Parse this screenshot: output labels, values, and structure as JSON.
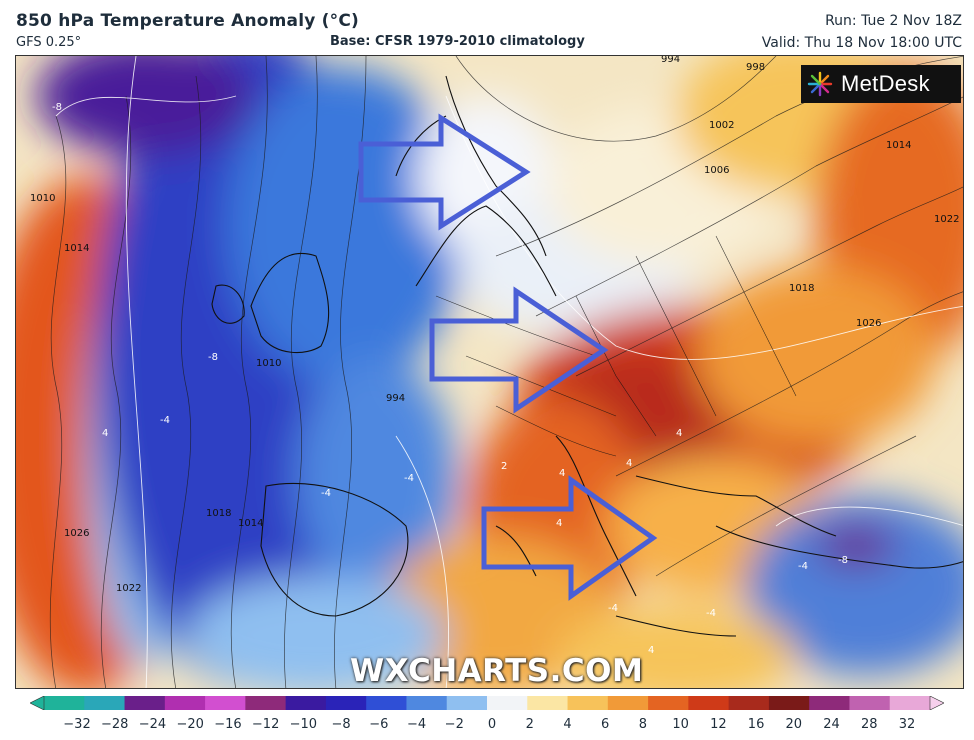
{
  "header": {
    "title": "850 hPa Temperature Anomaly (°C)",
    "model": "GFS 0.25°",
    "base": "Base: CFSR 1979-2010 climatology",
    "run": "Run: Tue 2 Nov 18Z",
    "valid": "Valid: Thu 18 Nov 18:00 UTC"
  },
  "logo": {
    "text": "MetDesk",
    "icon": "metdesk-burst-icon"
  },
  "watermark": "WXCHARTS.COM",
  "contour_labels": [
    {
      "t": "994"
    },
    {
      "t": "998"
    },
    {
      "t": "1002"
    },
    {
      "t": "1006"
    },
    {
      "t": "1014"
    },
    {
      "t": "1022"
    },
    {
      "t": "1018"
    },
    {
      "t": "1026"
    },
    {
      "t": "1010"
    },
    {
      "t": "1014"
    },
    {
      "t": "1026"
    },
    {
      "t": "1022"
    },
    {
      "t": "1018"
    },
    {
      "t": "1014"
    },
    {
      "t": "1010"
    },
    {
      "t": "994"
    }
  ],
  "anomaly_labels": [
    {
      "t": "-8"
    },
    {
      "t": "-8"
    },
    {
      "t": "-4"
    },
    {
      "t": "-4"
    },
    {
      "t": "-4"
    },
    {
      "t": "4"
    },
    {
      "t": "4"
    },
    {
      "t": "4"
    },
    {
      "t": "4"
    },
    {
      "t": "4"
    },
    {
      "t": "2"
    },
    {
      "t": "-4"
    },
    {
      "t": "-8"
    },
    {
      "t": "4"
    },
    {
      "t": "-4"
    },
    {
      "t": "-4"
    }
  ],
  "annotations": {
    "arrows": [
      "arrow-north",
      "arrow-central",
      "arrow-south"
    ],
    "arrow_color": "#4a5fd6"
  },
  "colorbar": {
    "ticks": [
      "−32",
      "−28",
      "−24",
      "−20",
      "−16",
      "−12",
      "−10",
      "−8",
      "−6",
      "−4",
      "−2",
      "0",
      "2",
      "4",
      "6",
      "8",
      "10",
      "12",
      "16",
      "20",
      "24",
      "28",
      "32"
    ],
    "colors": [
      "#1fb39a",
      "#2aa7b8",
      "#6a1f8a",
      "#b02fb0",
      "#d24fd0",
      "#8e2a7a",
      "#3a1aa0",
      "#2a23b8",
      "#2f4fd6",
      "#4f88e0",
      "#8fbff0",
      "#f2f4f7",
      "#fbe6a4",
      "#f7c25a",
      "#f19a38",
      "#e46422",
      "#cf3a18",
      "#a82a1c",
      "#7a1a18",
      "#8e2a7a",
      "#c062b0",
      "#e8a8d8"
    ]
  }
}
